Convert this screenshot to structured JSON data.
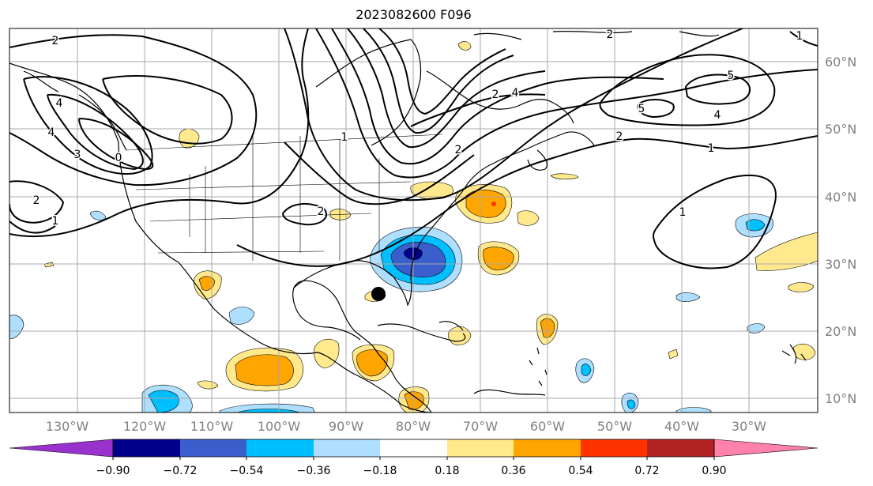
{
  "title": "2023082600 F096",
  "map": {
    "lon_labels": [
      "130°W",
      "120°W",
      "110°W",
      "100°W",
      "90°W",
      "80°W",
      "70°W",
      "60°W",
      "50°W",
      "40°W",
      "30°W"
    ],
    "lat_labels": [
      "60°N",
      "50°N",
      "40°N",
      "30°N",
      "20°N",
      "10°N"
    ],
    "contour_labels": [
      "2",
      "4",
      "4",
      "3",
      "0",
      "2",
      "1",
      "2",
      "2",
      "2",
      "4",
      "2",
      "5",
      "5",
      "4",
      "2",
      "1",
      "1",
      "1",
      "1"
    ]
  },
  "colorbar": {
    "ticks": [
      "−0.90",
      "−0.72",
      "−0.54",
      "−0.36",
      "−0.18",
      "0.18",
      "0.36",
      "0.54",
      "0.72",
      "0.90"
    ],
    "colors": [
      "#9932CC",
      "#00008B",
      "#3A5FCD",
      "#00BFFF",
      "#AEDFFF",
      "#FFFFFF",
      "#FFE98C",
      "#FFA500",
      "#FF3300",
      "#B22222",
      "#FF82AB"
    ]
  }
}
